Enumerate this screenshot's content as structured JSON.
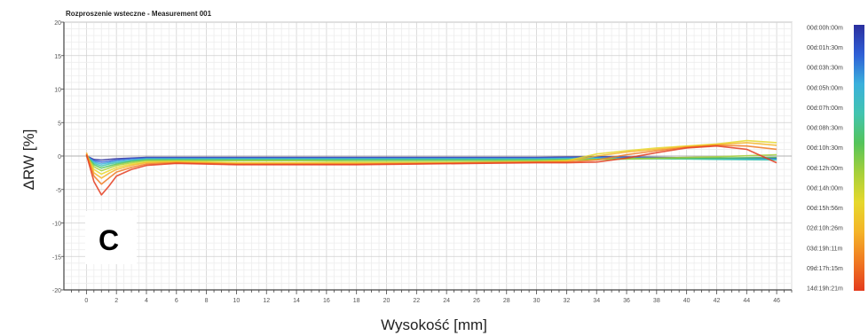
{
  "chart_data": {
    "type": "line",
    "title": "Rozproszenie wsteczne - Measurement 001",
    "xlabel": "Wysokość [mm]",
    "ylabel": "ΔRW [%]",
    "panel_label": "C",
    "xlim": [
      -1.5,
      47
    ],
    "ylim": [
      -20,
      20
    ],
    "x_ticks": [
      0,
      2,
      4,
      6,
      8,
      10,
      12,
      14,
      16,
      18,
      20,
      22,
      24,
      26,
      28,
      30,
      32,
      34,
      36,
      38,
      40,
      42,
      44,
      46
    ],
    "y_ticks": [
      20,
      15,
      10,
      5,
      0,
      -5,
      -10,
      -15,
      -20
    ],
    "grid": true,
    "legend_position": "right",
    "legend_type": "color gradient scale",
    "legend_colors": [
      "#2b2f9e",
      "#2f5fd6",
      "#3ab0dc",
      "#42c4b0",
      "#54c45a",
      "#a6d03a",
      "#e6d82c",
      "#f4b428",
      "#f07a22",
      "#e43c1e"
    ],
    "legend_labels": [
      "00d:00h:00m",
      "00d:01h:30m",
      "00d:03h:30m",
      "00d:05h:00m",
      "00d:07h:00m",
      "00d:08h:30m",
      "00d:10h:30m",
      "00d:12h:00m",
      "00d:14h:00m",
      "00d:15h:56m",
      "02d:10h:26m",
      "03d:19h:11m",
      "09d:17h:15m",
      "14d:19h:21m"
    ],
    "series": [
      {
        "color": "#2b2f9e",
        "x": [
          0,
          0.5,
          1,
          1.5,
          2,
          3,
          4,
          6,
          8,
          10,
          14,
          18,
          22,
          26,
          30,
          34,
          38,
          42,
          46
        ],
        "y": [
          0,
          -0.5,
          -0.6,
          -0.5,
          -0.4,
          -0.3,
          -0.2,
          -0.2,
          -0.2,
          -0.2,
          -0.2,
          -0.2,
          -0.2,
          -0.2,
          -0.2,
          -0.1,
          -0.2,
          -0.3,
          -0.3
        ]
      },
      {
        "color": "#2f5fd6",
        "x": [
          0,
          0.5,
          1,
          1.5,
          2,
          3,
          4,
          6,
          8,
          10,
          14,
          18,
          22,
          26,
          30,
          34,
          38,
          42,
          46
        ],
        "y": [
          0,
          -0.7,
          -0.9,
          -0.8,
          -0.6,
          -0.4,
          -0.3,
          -0.3,
          -0.3,
          -0.3,
          -0.3,
          -0.3,
          -0.3,
          -0.3,
          -0.3,
          -0.2,
          -0.3,
          -0.4,
          -0.4
        ]
      },
      {
        "color": "#3ab0dc",
        "x": [
          0,
          0.5,
          1,
          1.5,
          2,
          3,
          4,
          6,
          8,
          10,
          14,
          18,
          22,
          26,
          30,
          34,
          38,
          42,
          46
        ],
        "y": [
          0,
          -0.9,
          -1.2,
          -1.0,
          -0.8,
          -0.6,
          -0.4,
          -0.4,
          -0.4,
          -0.4,
          -0.4,
          -0.4,
          -0.4,
          -0.4,
          -0.4,
          -0.3,
          -0.3,
          -0.4,
          -0.5
        ]
      },
      {
        "color": "#42c4b0",
        "x": [
          0,
          0.5,
          1,
          1.5,
          2,
          3,
          4,
          6,
          8,
          10,
          14,
          18,
          22,
          26,
          30,
          34,
          38,
          42,
          46
        ],
        "y": [
          0,
          -1.1,
          -1.5,
          -1.2,
          -1.0,
          -0.7,
          -0.5,
          -0.5,
          -0.5,
          -0.5,
          -0.5,
          -0.5,
          -0.5,
          -0.5,
          -0.5,
          -0.4,
          -0.4,
          -0.5,
          -0.6
        ]
      },
      {
        "color": "#54c45a",
        "x": [
          0,
          0.5,
          1,
          1.5,
          2,
          3,
          4,
          6,
          8,
          10,
          14,
          18,
          22,
          26,
          30,
          34,
          38,
          42,
          46
        ],
        "y": [
          0,
          -1.3,
          -1.8,
          -1.5,
          -1.2,
          -0.8,
          -0.6,
          -0.6,
          -0.6,
          -0.6,
          -0.6,
          -0.6,
          -0.6,
          -0.6,
          -0.6,
          -0.5,
          -0.4,
          -0.3,
          -0.2
        ]
      },
      {
        "color": "#a6d03a",
        "x": [
          0,
          0.5,
          1,
          1.5,
          2,
          3,
          4,
          6,
          8,
          10,
          14,
          18,
          22,
          26,
          30,
          34,
          38,
          42,
          46
        ],
        "y": [
          0,
          -1.6,
          -2.2,
          -1.8,
          -1.4,
          -1.0,
          -0.7,
          -0.7,
          -0.7,
          -0.7,
          -0.7,
          -0.8,
          -0.8,
          -0.8,
          -0.7,
          -0.5,
          -0.3,
          -0.1,
          0.2
        ]
      },
      {
        "color": "#e6d82c",
        "x": [
          0,
          0.5,
          1,
          1.5,
          2,
          3,
          4,
          6,
          8,
          10,
          14,
          18,
          22,
          26,
          30,
          32,
          34,
          36,
          38,
          40,
          42,
          44,
          46
        ],
        "y": [
          0,
          -2.0,
          -2.7,
          -2.2,
          -1.7,
          -1.2,
          -0.9,
          -0.8,
          -0.9,
          -1.0,
          -1.0,
          -1.0,
          -1.0,
          -1.0,
          -0.9,
          -0.7,
          0.3,
          0.8,
          1.2,
          1.5,
          1.8,
          2.3,
          2.0
        ]
      },
      {
        "color": "#f4b428",
        "x": [
          0,
          0.5,
          1,
          1.5,
          2,
          3,
          4,
          6,
          8,
          10,
          14,
          18,
          22,
          26,
          30,
          32,
          34,
          36,
          38,
          40,
          42,
          44,
          46
        ],
        "y": [
          0.5,
          -2.5,
          -3.3,
          -2.6,
          -2.0,
          -1.4,
          -1.0,
          -0.9,
          -1.0,
          -1.1,
          -1.1,
          -1.1,
          -1.1,
          -1.0,
          -0.9,
          -0.8,
          0.0,
          0.6,
          1.0,
          1.4,
          1.7,
          2.0,
          1.6
        ]
      },
      {
        "color": "#f07a22",
        "x": [
          0,
          0.5,
          1,
          1.5,
          2,
          3,
          4,
          6,
          8,
          10,
          14,
          18,
          22,
          26,
          30,
          32,
          34,
          36,
          38,
          40,
          42,
          44,
          46
        ],
        "y": [
          0.3,
          -3.0,
          -4.2,
          -3.3,
          -2.4,
          -1.7,
          -1.2,
          -1.0,
          -1.1,
          -1.2,
          -1.2,
          -1.2,
          -1.1,
          -1.0,
          -0.9,
          -0.9,
          -0.6,
          0.2,
          0.8,
          1.3,
          1.6,
          1.5,
          1.0
        ]
      },
      {
        "color": "#e43c1e",
        "x": [
          0,
          0.5,
          1,
          1.5,
          2,
          3,
          4,
          6,
          8,
          10,
          14,
          18,
          22,
          26,
          30,
          32,
          34,
          36,
          38,
          40,
          42,
          44,
          46
        ],
        "y": [
          0.2,
          -3.8,
          -5.8,
          -4.5,
          -3.0,
          -2.0,
          -1.4,
          -1.1,
          -1.2,
          -1.3,
          -1.3,
          -1.3,
          -1.2,
          -1.1,
          -1.0,
          -1.0,
          -0.9,
          -0.3,
          0.5,
          1.2,
          1.5,
          1.0,
          -1.0
        ]
      }
    ]
  }
}
